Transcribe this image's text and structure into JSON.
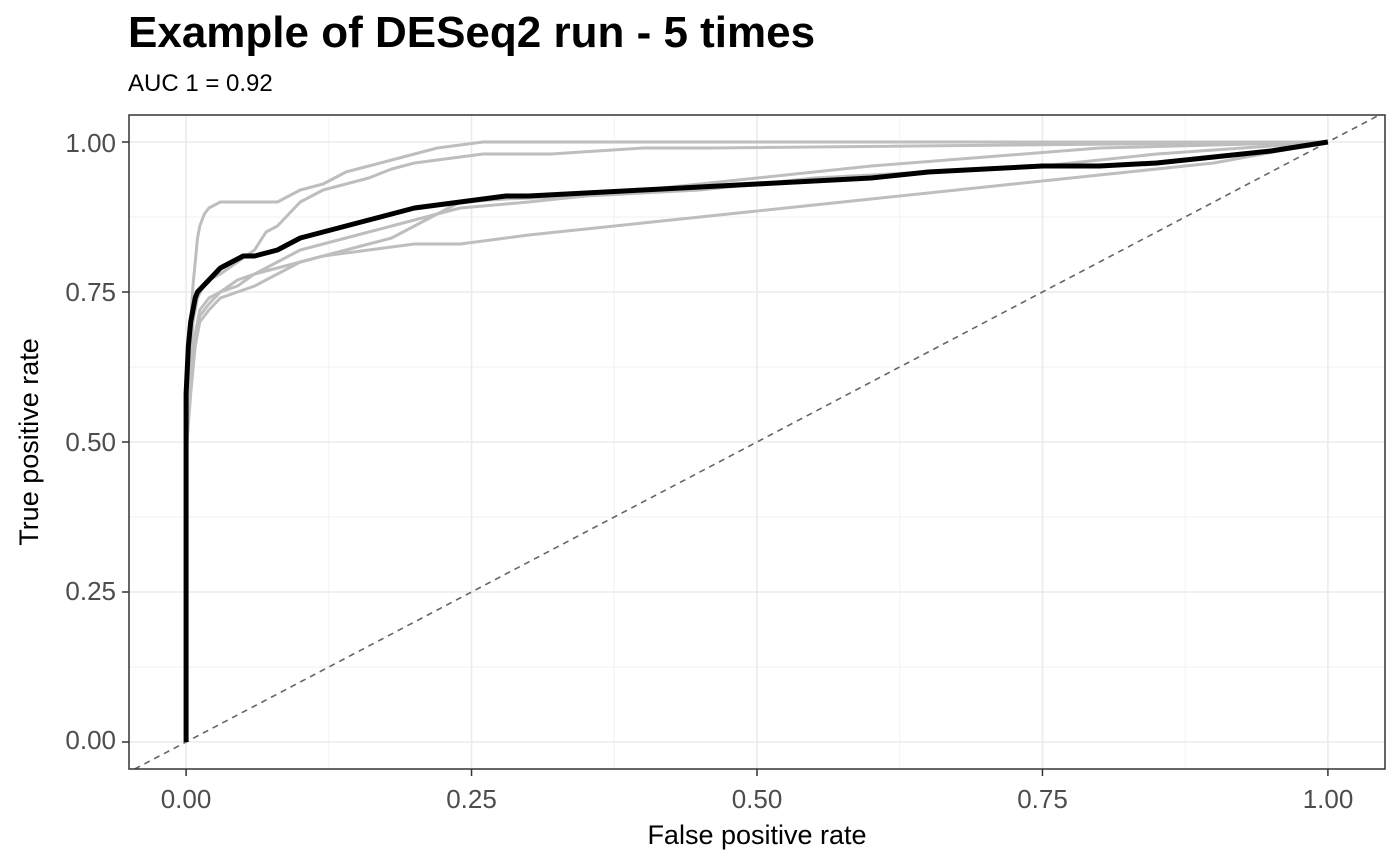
{
  "chart_data": {
    "type": "line",
    "title": "Example of DESeq2 run - 5 times",
    "subtitle": "AUC 1 = 0.92",
    "xlabel": "False positive rate",
    "ylabel": "True positive rate",
    "xlim": [
      -0.05,
      1.05
    ],
    "ylim": [
      -0.045,
      1.045
    ],
    "x_ticks": [
      "0.00",
      "0.25",
      "0.50",
      "0.75",
      "1.00"
    ],
    "y_ticks": [
      "0.00",
      "0.25",
      "0.50",
      "0.75",
      "1.00"
    ],
    "grid": true,
    "legend": "none",
    "reference_line": {
      "x": [
        0,
        1
      ],
      "y": [
        0,
        1
      ],
      "style": "dashed",
      "color": "#666666"
    },
    "colors": {
      "highlight": "#000000",
      "runs": "#bebebe"
    },
    "series": [
      {
        "role": "run",
        "x": [
          0,
          0,
          0.002,
          0.004,
          0.006,
          0.008,
          0.01,
          0.012,
          0.016,
          0.02,
          0.03,
          0.04,
          0.06,
          0.08,
          0.1,
          0.12,
          0.14,
          0.16,
          0.18,
          0.2,
          0.22,
          0.24,
          0.26,
          0.28,
          0.3,
          0.32,
          0.35,
          1.0
        ],
        "y": [
          0,
          0.5,
          0.6,
          0.7,
          0.76,
          0.8,
          0.84,
          0.86,
          0.88,
          0.89,
          0.9,
          0.9,
          0.9,
          0.9,
          0.92,
          0.93,
          0.95,
          0.96,
          0.97,
          0.98,
          0.99,
          0.995,
          1.0,
          1.0,
          1.0,
          1.0,
          1.0,
          1.0
        ]
      },
      {
        "role": "run",
        "x": [
          0,
          0,
          0.003,
          0.006,
          0.01,
          0.015,
          0.02,
          0.03,
          0.045,
          0.06,
          0.07,
          0.08,
          0.09,
          0.1,
          0.12,
          0.14,
          0.16,
          0.18,
          0.2,
          0.22,
          0.24,
          0.26,
          0.28,
          0.3,
          0.32,
          0.36,
          0.4,
          0.46,
          1.0
        ],
        "y": [
          0,
          0.5,
          0.62,
          0.7,
          0.74,
          0.76,
          0.77,
          0.78,
          0.8,
          0.82,
          0.85,
          0.86,
          0.88,
          0.9,
          0.92,
          0.93,
          0.94,
          0.955,
          0.965,
          0.97,
          0.975,
          0.98,
          0.98,
          0.98,
          0.98,
          0.985,
          0.99,
          0.99,
          1.0
        ]
      },
      {
        "role": "run",
        "x": [
          0,
          0,
          0.004,
          0.008,
          0.012,
          0.02,
          0.03,
          0.045,
          0.06,
          0.08,
          0.1,
          0.12,
          0.14,
          0.16,
          0.18,
          0.2,
          0.22,
          0.24,
          0.3,
          0.4,
          0.5,
          0.6,
          0.7,
          0.8,
          1.0
        ],
        "y": [
          0,
          0.5,
          0.6,
          0.68,
          0.72,
          0.74,
          0.75,
          0.76,
          0.78,
          0.8,
          0.82,
          0.83,
          0.84,
          0.85,
          0.86,
          0.87,
          0.88,
          0.89,
          0.9,
          0.92,
          0.94,
          0.96,
          0.975,
          0.99,
          1.0
        ]
      },
      {
        "role": "run",
        "x": [
          0,
          0,
          0.004,
          0.008,
          0.012,
          0.02,
          0.03,
          0.045,
          0.06,
          0.08,
          0.1,
          0.12,
          0.14,
          0.16,
          0.18,
          0.2,
          0.22,
          0.24,
          0.28,
          0.35,
          0.45,
          0.55,
          0.65,
          0.75,
          0.85,
          1.0
        ],
        "y": [
          0,
          0.48,
          0.58,
          0.66,
          0.7,
          0.72,
          0.74,
          0.75,
          0.76,
          0.78,
          0.8,
          0.81,
          0.82,
          0.83,
          0.84,
          0.86,
          0.88,
          0.9,
          0.905,
          0.91,
          0.92,
          0.94,
          0.95,
          0.96,
          0.98,
          1.0
        ]
      },
      {
        "role": "run",
        "x": [
          0,
          0,
          0.004,
          0.008,
          0.012,
          0.02,
          0.03,
          0.045,
          0.06,
          0.08,
          0.1,
          0.12,
          0.14,
          0.16,
          0.2,
          0.24,
          0.3,
          0.4,
          0.5,
          0.6,
          0.7,
          0.8,
          0.9,
          1.0
        ],
        "y": [
          0,
          0.5,
          0.6,
          0.68,
          0.71,
          0.73,
          0.75,
          0.77,
          0.78,
          0.79,
          0.8,
          0.81,
          0.815,
          0.82,
          0.83,
          0.83,
          0.845,
          0.865,
          0.885,
          0.905,
          0.925,
          0.945,
          0.965,
          1.0
        ]
      },
      {
        "role": "highlight",
        "x": [
          0,
          0,
          0.002,
          0.004,
          0.006,
          0.008,
          0.01,
          0.015,
          0.02,
          0.03,
          0.04,
          0.05,
          0.06,
          0.07,
          0.08,
          0.09,
          0.1,
          0.12,
          0.14,
          0.16,
          0.18,
          0.2,
          0.22,
          0.24,
          0.26,
          0.28,
          0.3,
          0.35,
          0.4,
          0.45,
          0.5,
          0.55,
          0.6,
          0.65,
          0.7,
          0.75,
          0.8,
          0.85,
          0.9,
          0.95,
          1.0
        ],
        "y": [
          0,
          0.58,
          0.66,
          0.7,
          0.72,
          0.74,
          0.75,
          0.76,
          0.77,
          0.79,
          0.8,
          0.81,
          0.81,
          0.815,
          0.82,
          0.83,
          0.84,
          0.85,
          0.86,
          0.87,
          0.88,
          0.89,
          0.895,
          0.9,
          0.905,
          0.91,
          0.91,
          0.915,
          0.92,
          0.925,
          0.93,
          0.935,
          0.94,
          0.95,
          0.955,
          0.96,
          0.96,
          0.965,
          0.975,
          0.985,
          1.0
        ]
      }
    ]
  }
}
